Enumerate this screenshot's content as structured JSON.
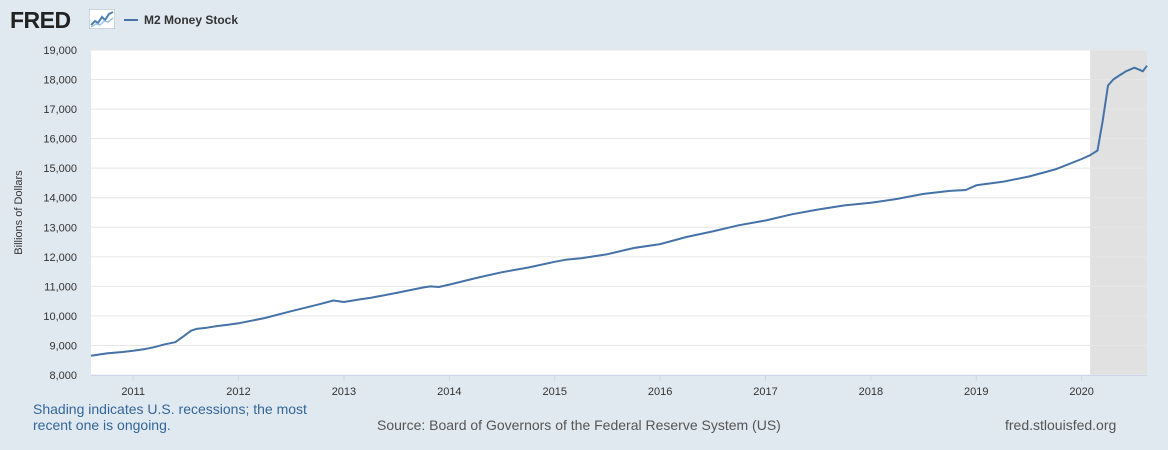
{
  "header": {
    "logo_text": "FRED",
    "logo_icon": "fred-chart-icon",
    "legend_label": "M2 Money Stock"
  },
  "colors": {
    "background": "#e1e9f0",
    "plot": "#ffffff",
    "line": "#4572a7",
    "recession": "#e1e1e1",
    "grid": "#e6e6e6"
  },
  "chart_data": {
    "type": "line",
    "title": "",
    "ylabel": "Billions of Dollars",
    "xlabel": "",
    "ylim": [
      8000,
      19000
    ],
    "xlim": [
      2010.6,
      2020.62
    ],
    "y_ticks": [
      8000,
      9000,
      10000,
      11000,
      12000,
      13000,
      14000,
      15000,
      16000,
      17000,
      18000,
      19000
    ],
    "y_tick_labels": [
      "8,000",
      "9,000",
      "10,000",
      "11,000",
      "12,000",
      "13,000",
      "14,000",
      "15,000",
      "16,000",
      "17,000",
      "18,000",
      "19,000"
    ],
    "x_ticks": [
      2011,
      2012,
      2013,
      2014,
      2015,
      2016,
      2017,
      2018,
      2019,
      2020
    ],
    "x_tick_labels": [
      "2011",
      "2012",
      "2013",
      "2014",
      "2015",
      "2016",
      "2017",
      "2018",
      "2019",
      "2020"
    ],
    "grid": true,
    "recession_shading": [
      {
        "start": 2020.08,
        "end": 2020.62
      }
    ],
    "series": [
      {
        "name": "M2 Money Stock",
        "x": [
          2010.6,
          2010.75,
          2010.9,
          2011.0,
          2011.1,
          2011.2,
          2011.3,
          2011.4,
          2011.47,
          2011.55,
          2011.6,
          2011.7,
          2011.8,
          2011.9,
          2012.0,
          2012.25,
          2012.5,
          2012.75,
          2012.9,
          2013.0,
          2013.15,
          2013.25,
          2013.5,
          2013.75,
          2013.82,
          2013.9,
          2014.0,
          2014.25,
          2014.5,
          2014.75,
          2015.0,
          2015.1,
          2015.25,
          2015.5,
          2015.75,
          2016.0,
          2016.25,
          2016.5,
          2016.75,
          2017.0,
          2017.25,
          2017.5,
          2017.75,
          2018.0,
          2018.25,
          2018.5,
          2018.75,
          2018.9,
          2019.0,
          2019.25,
          2019.5,
          2019.75,
          2020.0,
          2020.08,
          2020.15,
          2020.2,
          2020.25,
          2020.3,
          2020.35,
          2020.42,
          2020.5,
          2020.55,
          2020.58,
          2020.62
        ],
        "values": [
          8650,
          8730,
          8780,
          8820,
          8870,
          8940,
          9040,
          9110,
          9290,
          9500,
          9560,
          9600,
          9660,
          9700,
          9750,
          9930,
          10160,
          10380,
          10520,
          10470,
          10560,
          10610,
          10780,
          10960,
          11000,
          10980,
          11060,
          11280,
          11480,
          11640,
          11830,
          11900,
          11950,
          12090,
          12300,
          12430,
          12670,
          12860,
          13070,
          13230,
          13440,
          13600,
          13740,
          13830,
          13960,
          14130,
          14230,
          14260,
          14420,
          14540,
          14720,
          14960,
          15310,
          15440,
          15600,
          16600,
          17800,
          18000,
          18120,
          18280,
          18400,
          18330,
          18280,
          18470
        ]
      }
    ]
  },
  "footer": {
    "note": "Shading indicates U.S. recessions; the most recent one is ongoing.",
    "source": "Source: Board of Governors of the Federal Reserve System (US)",
    "url": "fred.stlouisfed.org"
  }
}
